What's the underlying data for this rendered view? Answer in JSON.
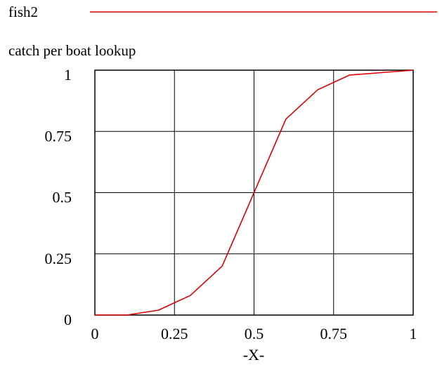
{
  "chart_data": {
    "type": "line",
    "title": "catch per boat lookup",
    "xlabel": "-X-",
    "ylabel": "",
    "xlim": [
      0,
      1
    ],
    "ylim": [
      0,
      1
    ],
    "grid": true,
    "legend": "top",
    "x_ticks": [
      "0",
      "0.25",
      "0.5",
      "0.75",
      "1"
    ],
    "y_ticks": [
      "0",
      "0.25",
      "0.5",
      "0.75",
      "1"
    ],
    "series": [
      {
        "name": "fish2",
        "color": "#e00000",
        "x": [
          0,
          0.1,
          0.2,
          0.3,
          0.4,
          0.5,
          0.6,
          0.7,
          0.8,
          0.9,
          1.0
        ],
        "y": [
          0,
          0,
          0.02,
          0.08,
          0.2,
          0.5,
          0.8,
          0.92,
          0.98,
          0.99,
          1.0
        ]
      }
    ]
  }
}
